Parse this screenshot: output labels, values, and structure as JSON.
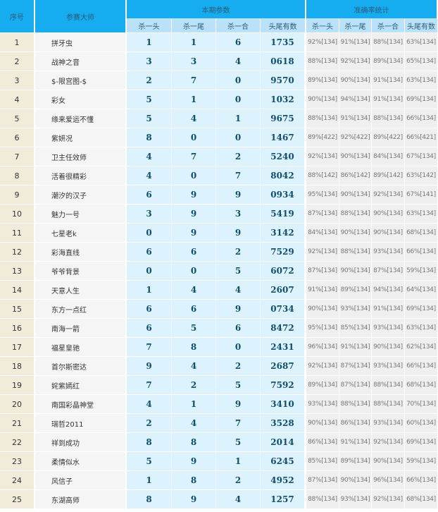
{
  "header": {
    "index": "序号",
    "master": "参赛大师",
    "current_group": "本期参数",
    "accuracy_group": "准确率统计",
    "current_cols": [
      "杀一头",
      "杀一尾",
      "杀一合",
      "头尾有数"
    ],
    "accuracy_cols": [
      "杀一头",
      "杀一尾",
      "杀一合",
      "头尾有数"
    ]
  },
  "rows": [
    {
      "no": "1",
      "name": "拼牙虫",
      "vals": [
        "1",
        "1",
        "6",
        "1735"
      ],
      "acc": [
        "92%[134]",
        "91%[134]",
        "88%[134]",
        "63%[134]"
      ]
    },
    {
      "no": "2",
      "name": "战神之音",
      "vals": [
        "3",
        "3",
        "4",
        "0618"
      ],
      "acc": [
        "88%[134]",
        "92%[134]",
        "89%[134]",
        "65%[134]"
      ]
    },
    {
      "no": "3",
      "name": "$-限宫图-$",
      "vals": [
        "2",
        "7",
        "0",
        "9570"
      ],
      "acc": [
        "89%[134]",
        "90%[134]",
        "91%[134]",
        "63%[134]"
      ]
    },
    {
      "no": "4",
      "name": "彩女",
      "vals": [
        "5",
        "1",
        "0",
        "1032"
      ],
      "acc": [
        "90%[134]",
        "94%[134]",
        "91%[134]",
        "69%[134]"
      ]
    },
    {
      "no": "5",
      "name": "缘来爱运不懂",
      "vals": [
        "5",
        "4",
        "1",
        "9675"
      ],
      "acc": [
        "88%[134]",
        "91%[134]",
        "88%[134]",
        "66%[134]"
      ]
    },
    {
      "no": "6",
      "name": "紫妍况",
      "vals": [
        "8",
        "0",
        "0",
        "1467"
      ],
      "acc": [
        "89%[422]",
        "92%[422]",
        "89%[422]",
        "66%[421]"
      ]
    },
    {
      "no": "7",
      "name": "卫主任效师",
      "vals": [
        "4",
        "7",
        "2",
        "5240"
      ],
      "acc": [
        "92%[134]",
        "90%[134]",
        "84%[134]",
        "67%[134]"
      ]
    },
    {
      "no": "8",
      "name": "活着很精彩",
      "vals": [
        "4",
        "0",
        "7",
        "8042"
      ],
      "acc": [
        "88%[142]",
        "86%[142]",
        "89%[142]",
        "63%[142]"
      ]
    },
    {
      "no": "9",
      "name": "潮汐的汉子",
      "vals": [
        "6",
        "9",
        "9",
        "0934"
      ],
      "acc": [
        "95%[134]",
        "90%[134]",
        "92%[134]",
        "67%[141]"
      ]
    },
    {
      "no": "10",
      "name": "魅力一号",
      "vals": [
        "3",
        "9",
        "3",
        "5419"
      ],
      "acc": [
        "87%[134]",
        "88%[134]",
        "90%[134]",
        "63%[134]"
      ]
    },
    {
      "no": "11",
      "name": "七星老k",
      "vals": [
        "0",
        "9",
        "9",
        "3142"
      ],
      "acc": [
        "84%[134]",
        "90%[134]",
        "90%[134]",
        "68%[134]"
      ]
    },
    {
      "no": "12",
      "name": "彩海直线",
      "vals": [
        "6",
        "6",
        "2",
        "7529"
      ],
      "acc": [
        "92%[134]",
        "88%[134]",
        "93%[134]",
        "66%[134]"
      ]
    },
    {
      "no": "13",
      "name": "爷爷背景",
      "vals": [
        "0",
        "0",
        "5",
        "6072"
      ],
      "acc": [
        "87%[134]",
        "90%[134]",
        "87%[134]",
        "59%[134]"
      ]
    },
    {
      "no": "14",
      "name": "天意人生",
      "vals": [
        "1",
        "4",
        "4",
        "2607"
      ],
      "acc": [
        "91%[134]",
        "89%[134]",
        "94%[134]",
        "64%[134]"
      ]
    },
    {
      "no": "15",
      "name": "东方一点红",
      "vals": [
        "6",
        "6",
        "9",
        "0734"
      ],
      "acc": [
        "90%[134]",
        "93%[134]",
        "91%[134]",
        "69%[134]"
      ]
    },
    {
      "no": "16",
      "name": "南海一箭",
      "vals": [
        "6",
        "5",
        "6",
        "8472"
      ],
      "acc": [
        "95%[134]",
        "85%[134]",
        "93%[134]",
        "63%[134]"
      ]
    },
    {
      "no": "17",
      "name": "福星皇驰",
      "vals": [
        "7",
        "8",
        "0",
        "2431"
      ],
      "acc": [
        "96%[134]",
        "91%[134]",
        "90%[134]",
        "62%[134]"
      ]
    },
    {
      "no": "18",
      "name": "首尔斯密达",
      "vals": [
        "9",
        "4",
        "2",
        "2687"
      ],
      "acc": [
        "92%[134]",
        "87%[134]",
        "93%[134]",
        "66%[134]"
      ]
    },
    {
      "no": "19",
      "name": "姹紫嫣红",
      "vals": [
        "7",
        "2",
        "5",
        "7592"
      ],
      "acc": [
        "89%[134]",
        "87%[134]",
        "88%[134]",
        "68%[134]"
      ]
    },
    {
      "no": "20",
      "name": "南国彩晶神堂",
      "vals": [
        "4",
        "1",
        "9",
        "3410"
      ],
      "acc": [
        "93%[134]",
        "88%[134]",
        "88%[134]",
        "70%[134]"
      ]
    },
    {
      "no": "21",
      "name": "瑞哲2011",
      "vals": [
        "2",
        "4",
        "7",
        "3528"
      ],
      "acc": [
        "90%[134]",
        "86%[134]",
        "93%[134]",
        "60%[134]"
      ]
    },
    {
      "no": "22",
      "name": "祥到成功",
      "vals": [
        "8",
        "8",
        "5",
        "2014"
      ],
      "acc": [
        "86%[134]",
        "91%[134]",
        "92%[134]",
        "69%[134]"
      ]
    },
    {
      "no": "23",
      "name": "柔情似水",
      "vals": [
        "5",
        "9",
        "1",
        "6245"
      ],
      "acc": [
        "85%[134]",
        "89%[134]",
        "90%[134]",
        "59%[134]"
      ]
    },
    {
      "no": "24",
      "name": "风信子",
      "vals": [
        "1",
        "8",
        "2",
        "4952"
      ],
      "acc": [
        "87%[134]",
        "90%[134]",
        "96%[134]",
        "66%[134]"
      ]
    },
    {
      "no": "25",
      "name": "东湖高师",
      "vals": [
        "8",
        "9",
        "4",
        "1257"
      ],
      "acc": [
        "88%[134]",
        "93%[134]",
        "92%[134]",
        "68%[134]"
      ]
    }
  ]
}
